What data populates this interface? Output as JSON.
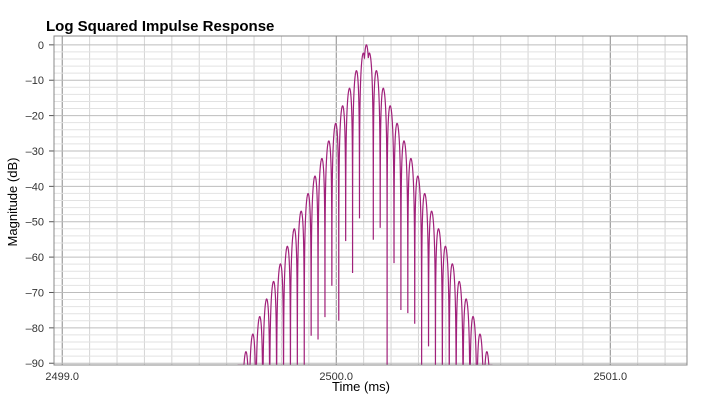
{
  "chart_data": {
    "type": "line",
    "title": "Log Squared Impulse Response",
    "xlabel": "Time (ms)",
    "ylabel": "Magnitude (dB)",
    "xlim": [
      2498.97,
      2501.28
    ],
    "ylim": [
      -90.5,
      2.5
    ],
    "x_ticks": [
      2499.0,
      2500.0,
      2501.0
    ],
    "x_tick_labels": [
      "2499.0",
      "2500.0",
      "2501.0"
    ],
    "y_ticks": [
      0,
      -10,
      -20,
      -30,
      -40,
      -50,
      -60,
      -70,
      -80,
      -90
    ],
    "y_tick_labels": [
      "0",
      "–10",
      "–20",
      "–30",
      "–40",
      "–50",
      "–60",
      "–70",
      "–80",
      "–90"
    ],
    "grid": true,
    "series": [
      {
        "color": "#a0207a",
        "peak_x": 2500.11,
        "peak_db": 0,
        "lobe_period_ms": 0.0252,
        "decay_db_per_ms": 197,
        "x_start": 2499.64,
        "x_end": 2500.57
      }
    ]
  }
}
